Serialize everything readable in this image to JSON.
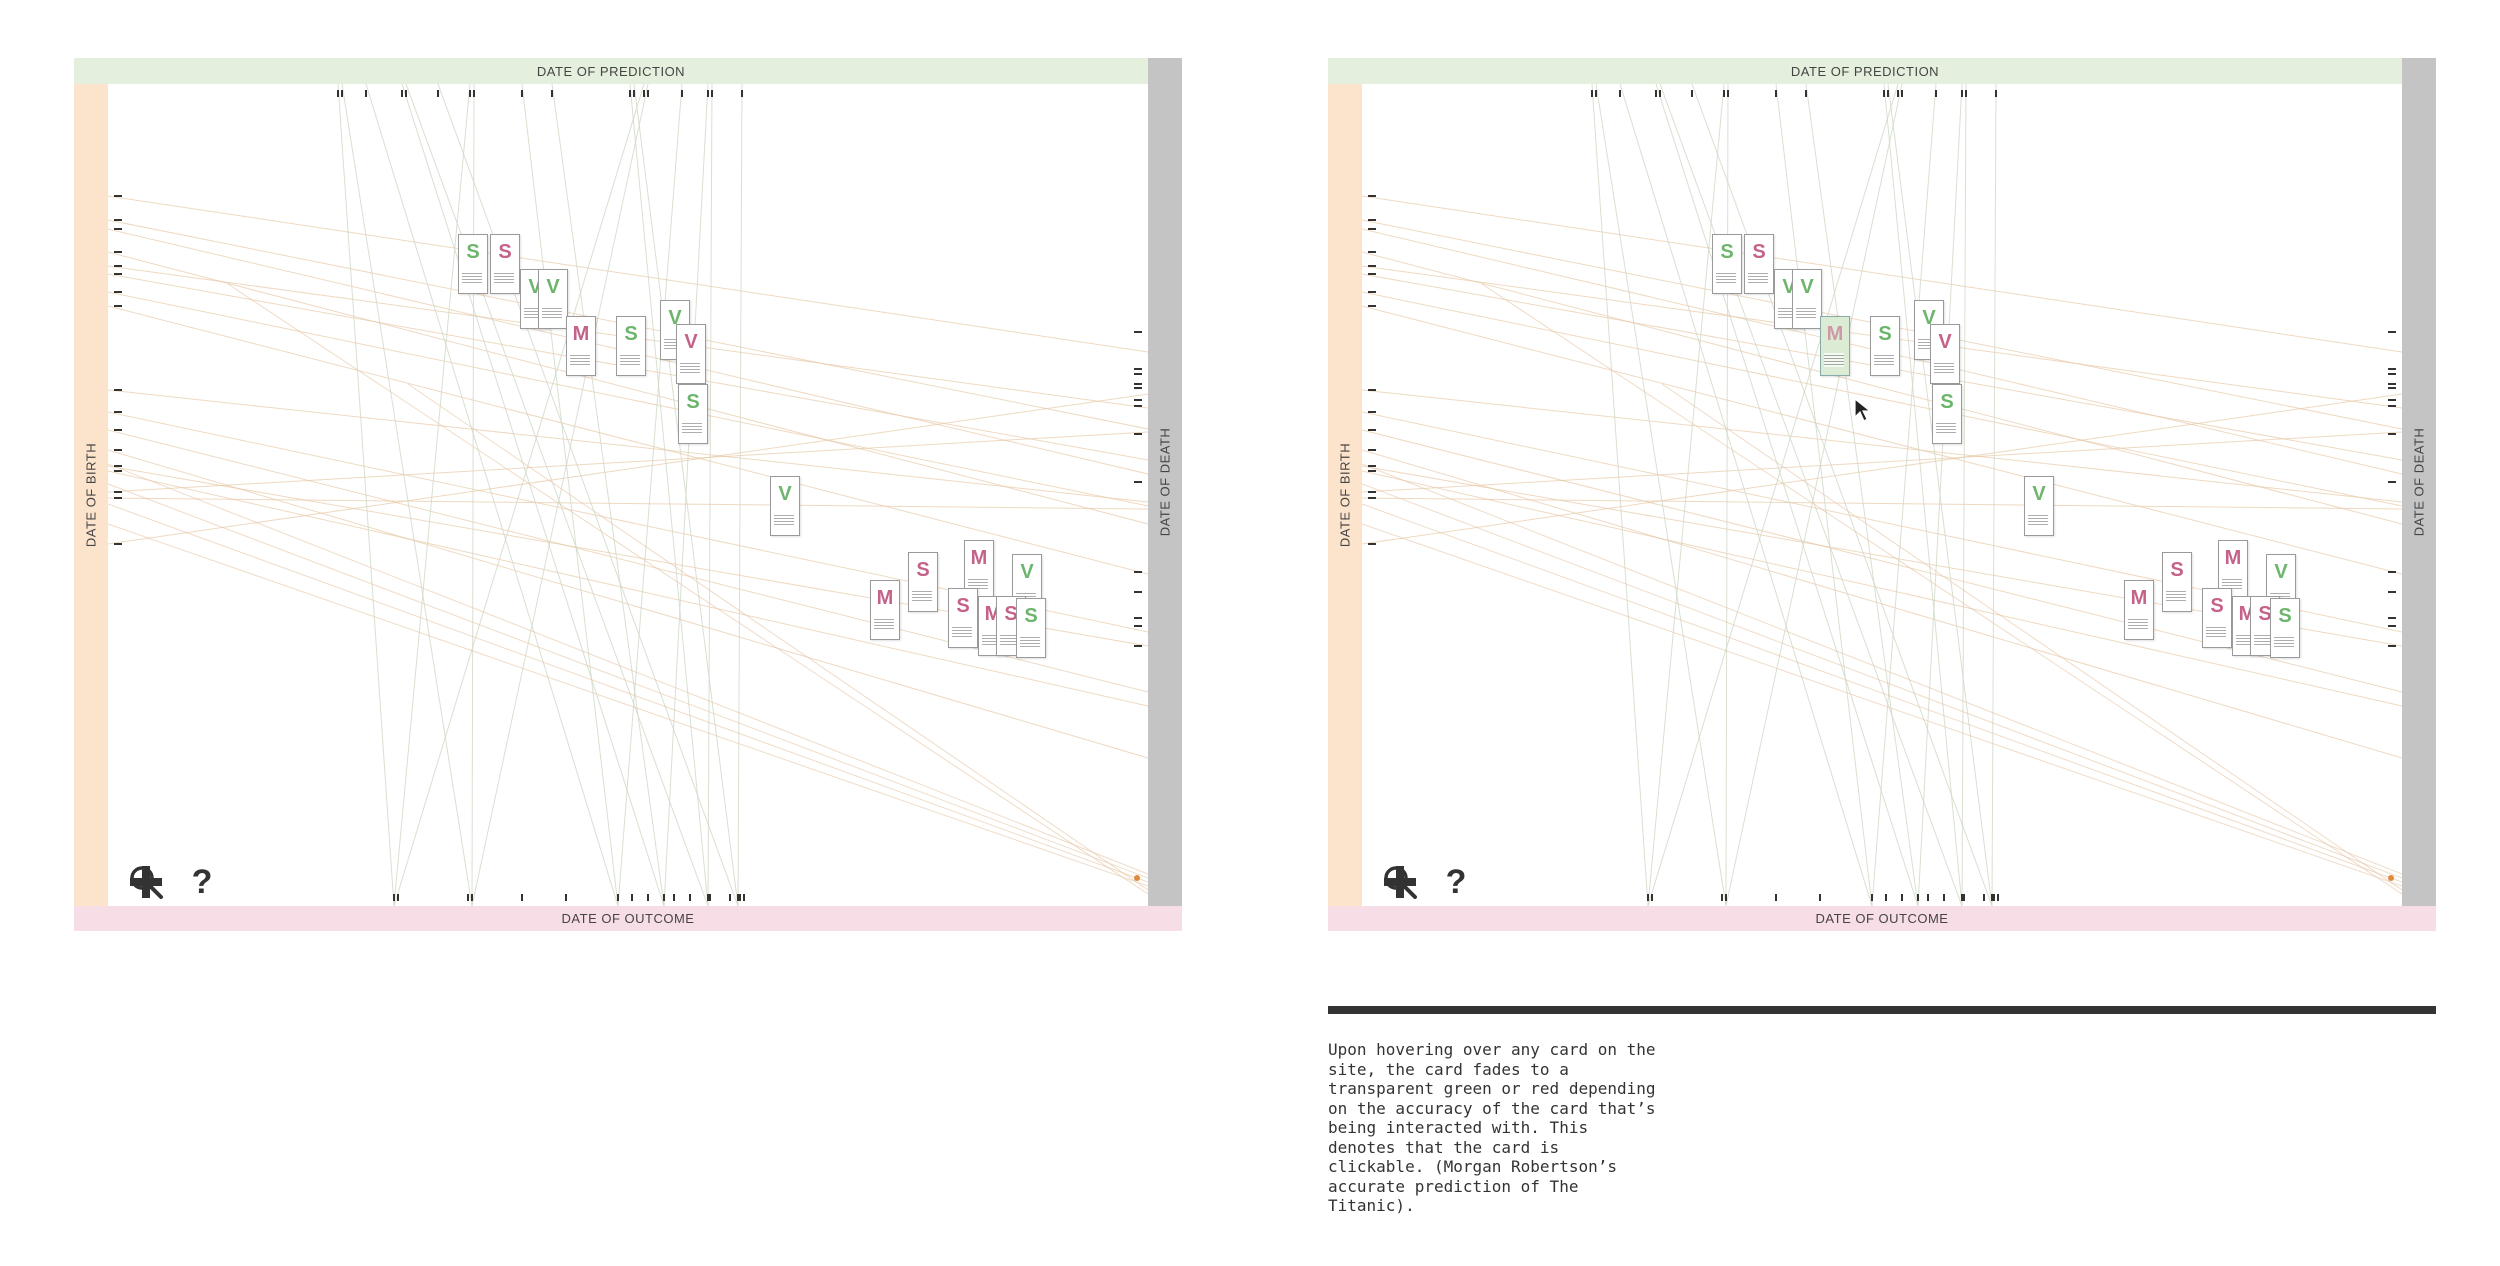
{
  "labels": {
    "date_of_prediction": "DATE OF PREDICTION",
    "date_of_outcome": "DATE OF OUTCOME",
    "date_of_birth": "DATE OF BIRTH",
    "date_of_death": "DATE OF DEATH"
  },
  "colors": {
    "prediction_band": "#e4f0dd",
    "birth_band": "#fce3cc",
    "death_band": "#c4c4c4",
    "outcome_band": "#f7dde6",
    "accurate_green": "#6db56d",
    "inaccurate_pink": "#c4628a",
    "hover_fill": "#dcebd4"
  },
  "cards_letters": [
    "S",
    "S",
    "V",
    "V",
    "M",
    "S",
    "V",
    "V",
    "S",
    "V",
    "S",
    "M",
    "M",
    "S",
    "M",
    "V",
    "S",
    "S"
  ],
  "hovered_card": {
    "letter": "M",
    "person": "Morgan Robertson",
    "prediction": "The Titanic"
  },
  "tools": [
    {
      "name": "search-icon",
      "glyph": "⚲"
    },
    {
      "name": "help-icon",
      "glyph": "?"
    },
    {
      "name": "add-icon",
      "glyph": "+"
    }
  ],
  "caption": "Upon hovering over any card on the site, the card fades to a transparent green or red depending on the accuracy of the card that’s being interacted with. This denotes that the card is clickable. (Morgan Robertson’s accurate prediction of The Titanic)."
}
